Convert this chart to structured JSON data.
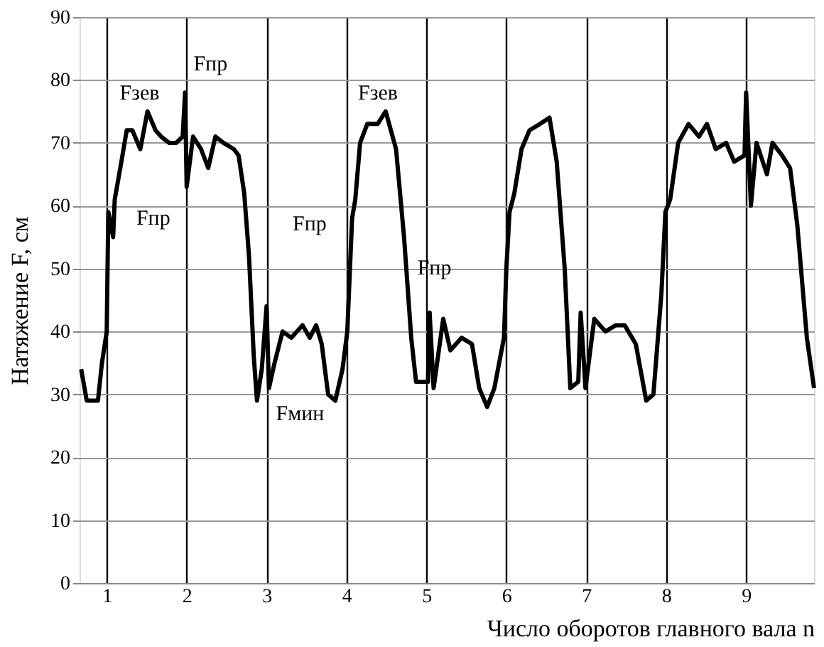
{
  "chart_data": {
    "type": "line",
    "xlabel": "Число оборотов главного вала n",
    "ylabel": "Натяжение F, см",
    "xlim": [
      0.66,
      9.85
    ],
    "xticks": [
      1,
      2,
      3,
      4,
      5,
      6,
      7,
      8,
      9
    ],
    "ylim": [
      0,
      90
    ],
    "yticks": [
      0,
      10,
      20,
      30,
      40,
      50,
      60,
      70,
      80,
      90
    ],
    "grid": true,
    "line_style": "solid",
    "marker": "none",
    "series": [
      {
        "color": "#000000",
        "x": [
          0.68,
          0.75,
          0.89,
          0.94,
          1.0,
          1.01,
          1.02,
          1.08,
          1.1,
          1.17,
          1.25,
          1.32,
          1.42,
          1.51,
          1.61,
          1.68,
          1.78,
          1.87,
          1.95,
          1.98,
          2.0,
          2.08,
          2.18,
          2.27,
          2.36,
          2.46,
          2.59,
          2.65,
          2.72,
          2.78,
          2.84,
          2.88,
          2.94,
          3.0,
          3.03,
          3.1,
          3.2,
          3.31,
          3.45,
          3.54,
          3.62,
          3.69,
          3.77,
          3.86,
          3.95,
          4.01,
          4.07,
          4.11,
          4.17,
          4.26,
          4.39,
          4.49,
          4.62,
          4.72,
          4.81,
          4.87,
          5.02,
          5.04,
          5.09,
          5.21,
          5.3,
          5.44,
          5.57,
          5.66,
          5.76,
          5.85,
          5.97,
          6.0,
          6.04,
          6.1,
          6.19,
          6.29,
          6.42,
          6.54,
          6.63,
          6.73,
          6.8,
          6.9,
          6.93,
          6.99,
          7.1,
          7.24,
          7.37,
          7.48,
          7.62,
          7.75,
          7.84,
          7.94,
          7.99,
          8.05,
          8.15,
          8.28,
          8.41,
          8.51,
          8.62,
          8.75,
          8.85,
          8.98,
          9.0,
          9.06,
          9.13,
          9.26,
          9.33,
          9.45,
          9.55,
          9.64,
          9.76,
          9.85
        ],
        "values": [
          34,
          29,
          29,
          35,
          40,
          50,
          59,
          55,
          61,
          66,
          72,
          72,
          69,
          75,
          72,
          71,
          70,
          70,
          71,
          78,
          63,
          71,
          69,
          66,
          71,
          70,
          69,
          68,
          62,
          52,
          36,
          29,
          34,
          44,
          31,
          35,
          40,
          39,
          41,
          39,
          41,
          38,
          30,
          29,
          34,
          40,
          58,
          61,
          70,
          73,
          73,
          75,
          69,
          55,
          39,
          32,
          32,
          43,
          31,
          42,
          37,
          39,
          38,
          31,
          28,
          31,
          39,
          50,
          59,
          62,
          69,
          72,
          73,
          74,
          67,
          50,
          31,
          32,
          43,
          31,
          42,
          40,
          41,
          41,
          38,
          29,
          30,
          46,
          59,
          61,
          70,
          73,
          71,
          73,
          69,
          70,
          67,
          68,
          78,
          60,
          70,
          65,
          70,
          68,
          66,
          57,
          39,
          31
        ]
      }
    ],
    "annotations": [
      "Fзев",
      "Fпр",
      "Fпр",
      "Fмин",
      "Fпр",
      "Fзев",
      "Fпр"
    ]
  }
}
